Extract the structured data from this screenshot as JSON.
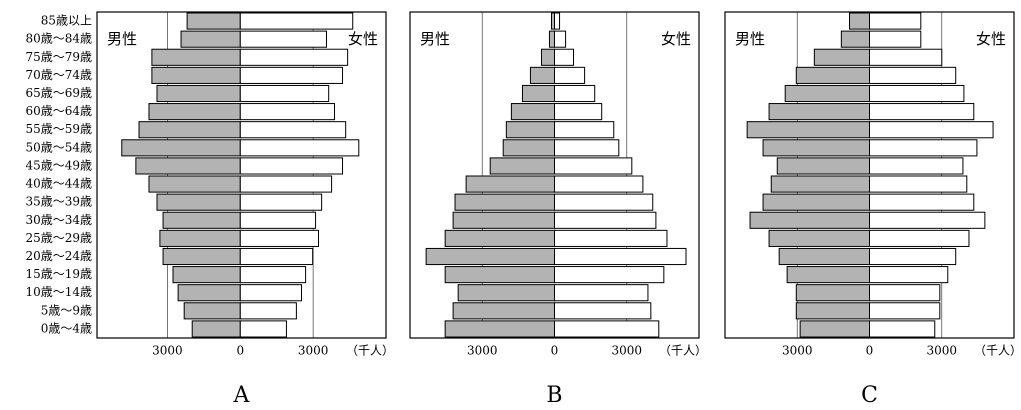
{
  "chart_data": [
    {
      "type": "pyramid",
      "label": "A",
      "categories": [
        "85歳以上",
        "80歳～84歳",
        "75歳～79歳",
        "70歳～74歳",
        "65歳～69歳",
        "60歳～64歳",
        "55歳～59歳",
        "50歳～54歳",
        "45歳～49歳",
        "40歳～44歳",
        "35歳～39歳",
        "30歳～34歳",
        "25歳～29歳",
        "20歳～24歳",
        "15歳～19歳",
        "10歳～14歳",
        "5歳～9歳",
        "0歳～4歳"
      ],
      "series": [
        {
          "name": "男性",
          "color": "#b3b3b3",
          "values": [
            -2190,
            -2440,
            -3640,
            -3640,
            -3430,
            -3760,
            -4170,
            -4880,
            -4300,
            -3760,
            -3430,
            -3180,
            -3310,
            -3180,
            -2770,
            -2560,
            -2310,
            -1980
          ]
        },
        {
          "name": "女性",
          "color": "#ffffff",
          "values": [
            4630,
            3550,
            4420,
            4210,
            3640,
            3880,
            4340,
            4880,
            4210,
            3760,
            3350,
            3100,
            3220,
            2980,
            2690,
            2520,
            2310,
            1900
          ]
        }
      ],
      "xlim": [
        -5900,
        6000
      ],
      "xticks": [
        {
          "value": -3000,
          "label": "3000"
        },
        0,
        3000
      ],
      "xlabel": "（千人）",
      "grid": true
    },
    {
      "type": "pyramid",
      "label": "B",
      "series": [
        {
          "name": "男性",
          "color": "#b3b3b3",
          "values": [
            -125,
            -210,
            -540,
            -1000,
            -1330,
            -1790,
            -2000,
            -2130,
            -2670,
            -3670,
            -4130,
            -4210,
            -4540,
            -5330,
            -4540,
            -4000,
            -4210,
            -4540
          ]
        },
        {
          "name": "女性",
          "color": "#ffffff",
          "values": [
            210,
            460,
            790,
            1250,
            1670,
            1960,
            2460,
            2670,
            3210,
            3670,
            4080,
            4210,
            4670,
            5460,
            4540,
            3880,
            4000,
            4330
          ]
        }
      ],
      "xlim": [
        -6000,
        6000
      ],
      "xticks": [
        {
          "value": -3000,
          "label": "3000"
        },
        0,
        3000
      ],
      "xlabel": "（千人）",
      "grid": true
    },
    {
      "type": "pyramid",
      "label": "C",
      "series": [
        {
          "name": "男性",
          "color": "#b3b3b3",
          "values": [
            -830,
            -1170,
            -2290,
            -3040,
            -3500,
            -4170,
            -5080,
            -4420,
            -3830,
            -4080,
            -4420,
            -4960,
            -4170,
            -3750,
            -3420,
            -3040,
            -3040,
            -2880
          ]
        },
        {
          "name": "女性",
          "color": "#ffffff",
          "values": [
            2130,
            2130,
            3000,
            3580,
            3920,
            4330,
            5130,
            4460,
            3880,
            4040,
            4330,
            4790,
            4130,
            3580,
            3250,
            2920,
            2920,
            2710
          ]
        }
      ],
      "xlim": [
        -6000,
        6000
      ],
      "xticks": [
        {
          "value": -3000,
          "label": "3000"
        },
        0,
        3000
      ],
      "xlabel": "（千人）",
      "grid": true
    }
  ]
}
